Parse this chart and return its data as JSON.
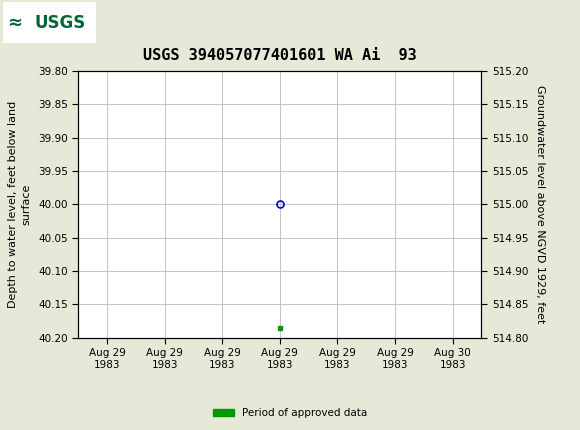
{
  "title": "USGS 394057077401601 WA Ai  93",
  "ylabel_left": "Depth to water level, feet below land\nsurface",
  "ylabel_right": "Groundwater level above NGVD 1929, feet",
  "ylim_left": [
    40.2,
    39.8
  ],
  "ylim_right": [
    514.8,
    515.2
  ],
  "yticks_left": [
    39.8,
    39.85,
    39.9,
    39.95,
    40.0,
    40.05,
    40.1,
    40.15,
    40.2
  ],
  "yticks_right": [
    514.8,
    514.85,
    514.9,
    514.95,
    515.0,
    515.05,
    515.1,
    515.15,
    515.2
  ],
  "data_point_x": 3,
  "data_point_y": 40.0,
  "data_point_color": "#0000cc",
  "data_point_facecolor": "none",
  "green_marker_x": 3,
  "green_marker_y": 40.185,
  "green_color": "#009900",
  "background_color": "#e8e8d8",
  "plot_bg_color": "#ffffff",
  "header_bg_color": "#006633",
  "header_logo_bg": "#ffffff",
  "grid_color": "#bbbbbb",
  "tick_label_color": "#000000",
  "title_fontsize": 11,
  "axis_label_fontsize": 8,
  "tick_fontsize": 7.5,
  "legend_label": "Period of approved data",
  "xtick_positions": [
    0,
    1,
    2,
    3,
    4,
    5,
    6
  ],
  "xtick_labels": [
    "Aug 29\n1983",
    "Aug 29\n1983",
    "Aug 29\n1983",
    "Aug 29\n1983",
    "Aug 29\n1983",
    "Aug 29\n1983",
    "Aug 30\n1983"
  ],
  "xlim": [
    -0.5,
    6.5
  ]
}
